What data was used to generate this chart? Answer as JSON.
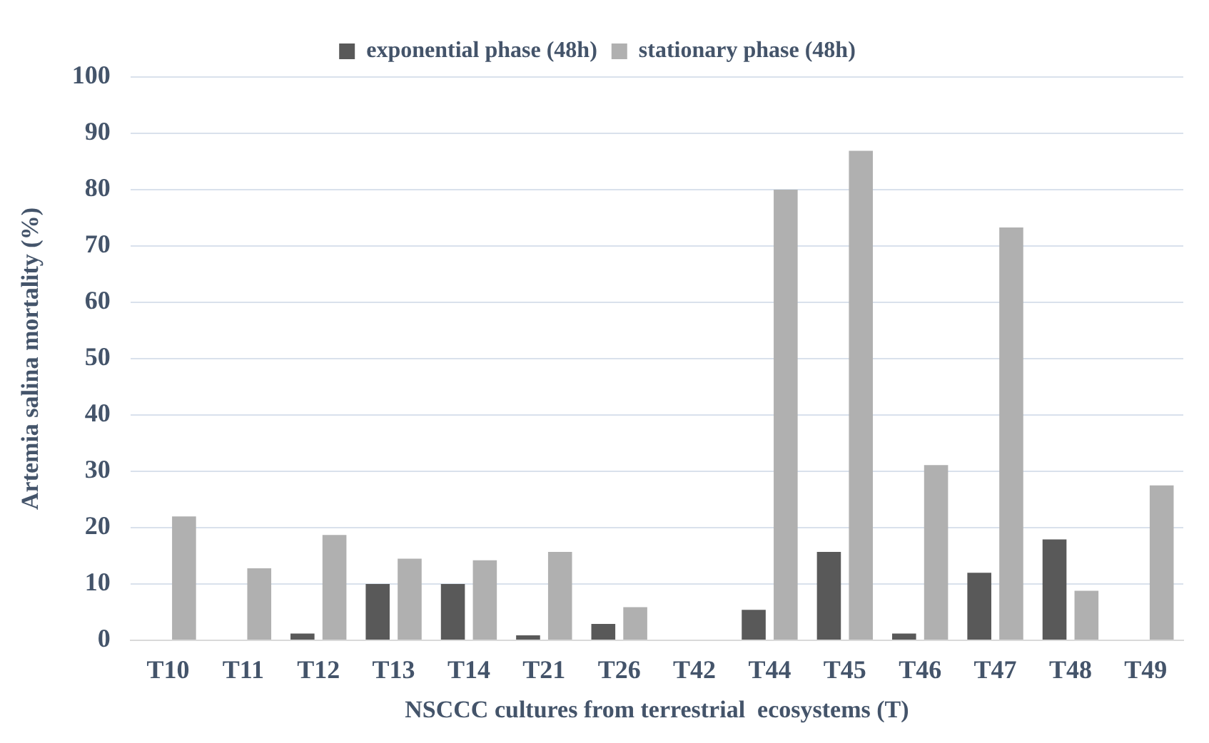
{
  "chart_data": {
    "type": "bar",
    "xlabel": "NSCCC cultures from terrestrial  ecosystems (T)",
    "ylabel": "Artemia salina mortality (%)",
    "categories": [
      "T10",
      "T11",
      "T12",
      "T13",
      "T14",
      "T21",
      "T26",
      "T42",
      "T44",
      "T45",
      "T46",
      "T47",
      "T48",
      "T49"
    ],
    "series": [
      {
        "name": "exponential phase (48h)",
        "color": "#595959",
        "values": [
          0,
          0,
          1.2,
          10,
          10,
          0.9,
          2.9,
          0,
          5.4,
          15.7,
          1.2,
          12.0,
          17.9,
          0
        ]
      },
      {
        "name": "stationary phase (48h)",
        "color": "#b0b0b0",
        "values": [
          22.0,
          12.8,
          18.7,
          14.5,
          14.2,
          15.7,
          5.9,
          0,
          80,
          86.9,
          31.1,
          73.3,
          8.8,
          27.5
        ]
      }
    ],
    "ylim": [
      0,
      100
    ],
    "yticks": [
      0,
      10,
      20,
      30,
      40,
      50,
      60,
      70,
      80,
      90,
      100
    ],
    "grid": "y",
    "legend": "top"
  }
}
